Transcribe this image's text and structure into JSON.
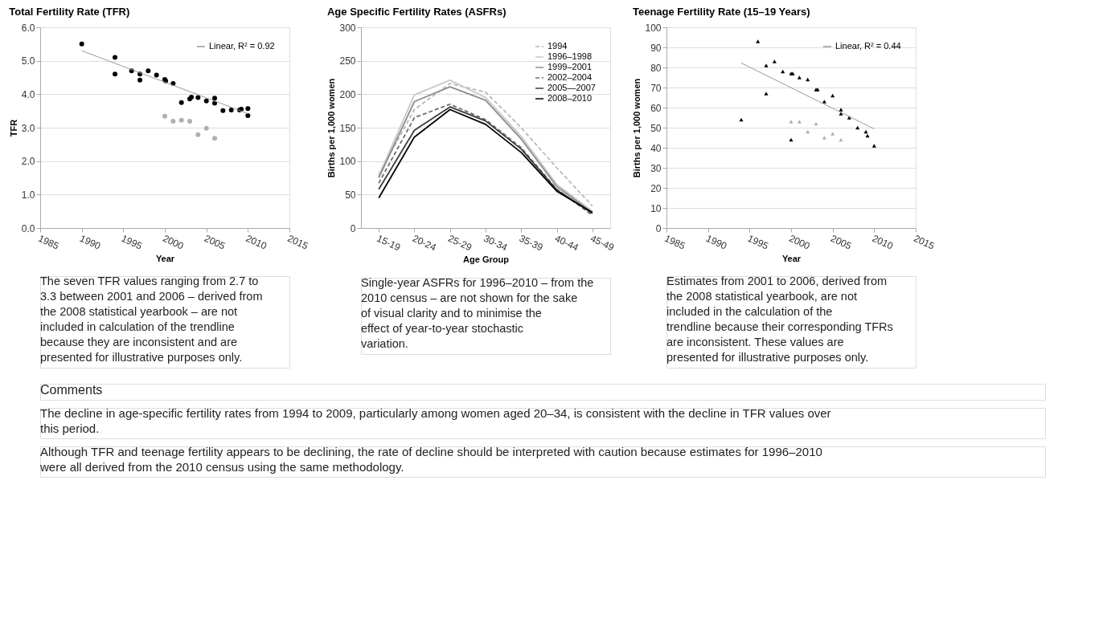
{
  "chart_data": [
    {
      "type": "scatter",
      "title": "Total Fertility Rate (TFR)",
      "xlabel": "Year",
      "ylabel": "TFR",
      "xlim": [
        1985,
        2015
      ],
      "xticks": [
        1985,
        1990,
        1995,
        2000,
        2005,
        2010,
        2015
      ],
      "ylim": [
        0,
        6
      ],
      "yticks": [
        {
          "value": 0,
          "label": "0.0"
        },
        {
          "value": 1,
          "label": "1.0"
        },
        {
          "value": 2,
          "label": "2.0"
        },
        {
          "value": 3,
          "label": "3.0"
        },
        {
          "value": 4,
          "label": "4.0"
        },
        {
          "value": 5,
          "label": "5.0"
        },
        {
          "value": 6,
          "label": "6.0"
        }
      ],
      "grid": "y",
      "legend": "top right",
      "series": [
        {
          "type": "scatter",
          "marker": "circle",
          "color": "#000000",
          "x": [
            1990,
            1994,
            1994,
            1996,
            1997,
            1997,
            1998,
            1999,
            2000,
            2000.1,
            2001,
            2002,
            2003,
            2003.2,
            2004,
            2005,
            2006,
            2006,
            2007,
            2008,
            2009,
            2009.2,
            2010,
            2010
          ],
          "values": [
            5.5,
            5.1,
            4.6,
            4.7,
            4.6,
            4.42,
            4.7,
            4.57,
            4.44,
            4.4,
            4.32,
            3.75,
            3.86,
            3.91,
            3.9,
            3.8,
            3.88,
            3.73,
            3.51,
            3.53,
            3.53,
            3.55,
            3.57,
            3.36
          ]
        },
        {
          "type": "scatter",
          "marker": "circle",
          "color": "#b0b0b0",
          "x": [
            2000,
            2001,
            2002,
            2003,
            2004,
            2005,
            2006
          ],
          "values": [
            3.34,
            3.19,
            3.22,
            3.19,
            2.79,
            2.98,
            2.68
          ]
        },
        {
          "type": "line",
          "name": "Linear, R² = 0.92",
          "color": "#999999",
          "x": [
            1990,
            2010
          ],
          "values": [
            5.3,
            3.42
          ]
        }
      ],
      "annotations": [
        "The seven TFR values ranging from 2.7 to 3.3 between 2001 and 2006 – derived from the 2008 statistical yearbook – are not included in calculation of the trendline because they are inconsistent and are presented for illustrative purposes only."
      ]
    },
    {
      "type": "line",
      "title": "Age Specific Fertility Rates (ASFRs)",
      "xlabel": "Age Group",
      "ylabel": "Births per 1,000 women",
      "categories": [
        "15-19",
        "20-24",
        "25-29",
        "30-34",
        "35-39",
        "40-44",
        "45-49"
      ],
      "ylim": [
        0,
        300
      ],
      "yticks": [
        0,
        50,
        100,
        150,
        200,
        250,
        300
      ],
      "grid": "y",
      "legend": "top right",
      "series": [
        {
          "name": "1994",
          "color": "#b8b8b8",
          "line_style": "dashed",
          "values": [
            80,
            177,
            216,
            203,
            150,
            90,
            33
          ]
        },
        {
          "name": "1996–1998",
          "color": "#c8c8c8",
          "line_style": "solid",
          "values": [
            78,
            199,
            221,
            195,
            137,
            65,
            25
          ]
        },
        {
          "name": "1999–2001",
          "color": "#8c8c8c",
          "line_style": "solid",
          "values": [
            75,
            189,
            211,
            191,
            133,
            62,
            23
          ]
        },
        {
          "name": "2002–2004",
          "color": "#6e6e6e",
          "line_style": "dashed",
          "values": [
            67,
            165,
            185,
            162,
            120,
            58,
            19
          ]
        },
        {
          "name": "2005—2007",
          "color": "#3c3c3c",
          "line_style": "solid",
          "values": [
            58,
            146,
            181,
            160,
            118,
            57,
            22
          ]
        },
        {
          "name": "2008–2010",
          "color": "#000000",
          "line_style": "solid",
          "values": [
            45,
            136,
            177,
            155,
            113,
            55,
            23
          ]
        }
      ],
      "annotations": [
        "Single-year ASFRs for 1996–2010 – from the 2010 census – are not shown for the sake of visual clarity and to minimise the effect of year-to-year stochastic variation."
      ]
    },
    {
      "type": "scatter",
      "title": "Teenage Fertility Rate (15–19 Years)",
      "xlabel": "Year",
      "ylabel": "Births per 1,000 women",
      "xlim": [
        1985,
        2015
      ],
      "xticks": [
        1985,
        1990,
        1995,
        2000,
        2005,
        2010,
        2015
      ],
      "ylim": [
        0,
        100
      ],
      "yticks": [
        0,
        10,
        20,
        30,
        40,
        50,
        60,
        70,
        80,
        90,
        100
      ],
      "grid": "y",
      "legend": "top right",
      "series": [
        {
          "type": "scatter",
          "marker": "triangle",
          "color": "#000000",
          "x": [
            1994,
            1996,
            1997,
            1997,
            1998,
            1999,
            2000,
            2000.2,
            2000,
            2001,
            2002,
            2003,
            2003.2,
            2004,
            2005,
            2006,
            2006,
            2007,
            2008,
            2009,
            2009.2,
            2010
          ],
          "values": [
            54,
            93,
            81,
            67,
            83,
            78,
            77,
            77,
            44,
            75,
            74,
            69,
            69,
            63,
            66,
            59,
            57,
            55,
            50,
            48,
            46,
            41
          ]
        },
        {
          "type": "scatter",
          "marker": "triangle",
          "color": "#b0b0b0",
          "x": [
            2000,
            2001,
            2002,
            2003,
            2004,
            2005,
            2006
          ],
          "values": [
            53,
            53,
            48,
            52,
            45,
            47,
            44
          ]
        },
        {
          "type": "line",
          "name": "Linear, R² = 0.44",
          "color": "#999999",
          "x": [
            1994,
            2010
          ],
          "values": [
            82.2,
            49.4
          ]
        }
      ],
      "annotations": [
        "Estimates from 2001 to 2006, derived from the 2008 statistical yearbook, are not included in the calculation of the trendline because their corresponding TFRs are inconsistent. These values are presented for illustrative purposes only."
      ]
    },
    {
      "type": "other",
      "title": "Comments",
      "annotations": [
        "The decline in age-specific fertility rates from 1994 to 2009, particularly among women aged 20–34, is consistent with the decline in TFR values over this period.",
        "Although TFR and teenage fertility appears to be declining, the rate of decline should be interpreted with caution because estimates for 1996–2010 were all derived from the 2010 census using the same methodology."
      ]
    }
  ]
}
